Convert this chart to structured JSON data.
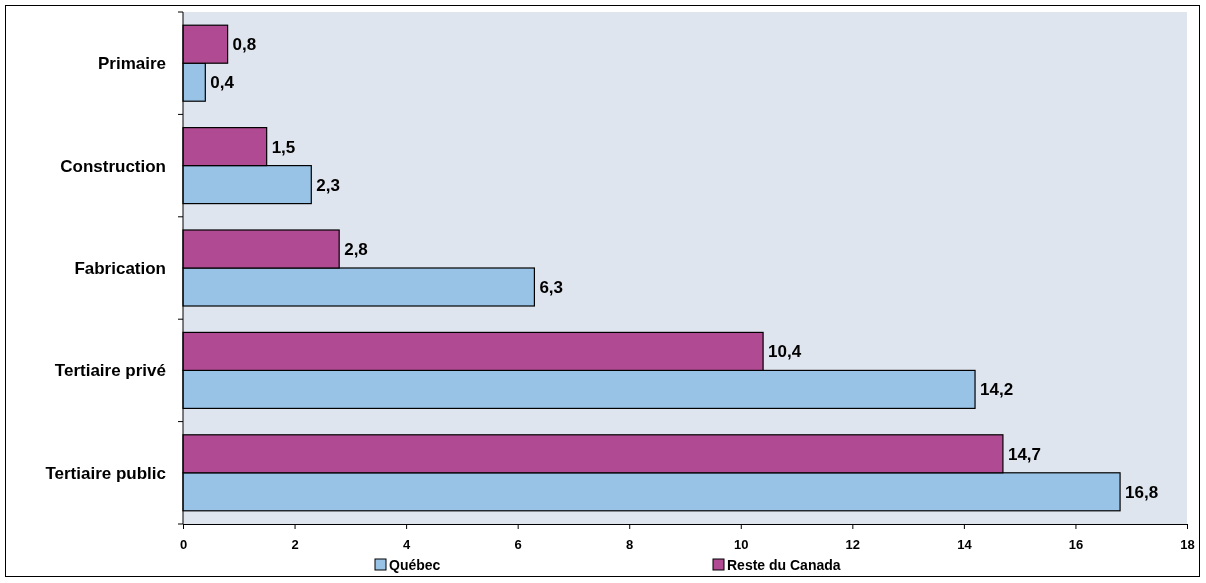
{
  "chart_data": {
    "type": "bar",
    "orientation": "horizontal",
    "categories": [
      "Primaire",
      "Construction",
      "Fabrication",
      "Tertiaire privé",
      "Tertiaire public"
    ],
    "series": [
      {
        "name": "Québec",
        "color": "#99c3e6",
        "values": [
          0.4,
          2.3,
          6.3,
          14.2,
          16.8
        ],
        "value_labels": [
          "0,4",
          "2,3",
          "6,3",
          "14,2",
          "16,8"
        ]
      },
      {
        "name": "Reste du Canada",
        "color": "#b04a92",
        "values": [
          0.8,
          1.5,
          2.8,
          10.4,
          14.7
        ],
        "value_labels": [
          "0,8",
          "1,5",
          "2,8",
          "10,4",
          "14,7"
        ]
      }
    ],
    "xlim": [
      0,
      18
    ],
    "xticks": [
      0,
      2,
      4,
      6,
      8,
      10,
      12,
      14,
      16,
      18
    ],
    "legend": "bottom",
    "grid": false
  }
}
